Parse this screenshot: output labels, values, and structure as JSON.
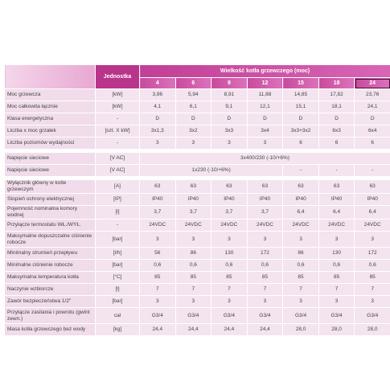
{
  "header": {
    "unit_label": "Jednostka",
    "group_label": "Wielkość kotła grzewczego (moc)",
    "columns": [
      "4",
      "6",
      "9",
      "12",
      "15",
      "18",
      "24"
    ]
  },
  "rows": [
    {
      "label": "Moc grzewcza",
      "unit": "[kW]",
      "values": [
        "3,96",
        "5,94",
        "8,91",
        "11,88",
        "14,85",
        "17,82",
        "23,76"
      ]
    },
    {
      "label": "Moc całkowita łącznie",
      "unit": "[kW]",
      "values": [
        "4,1",
        "6,1",
        "9,1",
        "12,1",
        "15,1",
        "18,1",
        "24,1"
      ]
    },
    {
      "label": "Klasa energetyczna",
      "unit": "-",
      "values": [
        "D",
        "D",
        "D",
        "D",
        "D",
        "D",
        "D"
      ]
    },
    {
      "label": "Liczba x moc grzałek",
      "unit": "[szt. X kW]",
      "values": [
        "3x1,3",
        "3x2",
        "3x3",
        "3x4",
        "3x3+3x2",
        "6x3",
        "6x4"
      ]
    },
    {
      "label": "Liczba poziomów wydajności",
      "unit": "-",
      "values": [
        "3",
        "3",
        "3",
        "3",
        "6",
        "6",
        "6"
      ]
    },
    {
      "label": "Napięcie sieciowe",
      "unit": "[V AC]",
      "values": [
        "3x400/230 (-10/+6%)"
      ]
    },
    {
      "label": "Napięcie sieciowe",
      "unit": "[V AC]",
      "values": [
        "1x230 (-10/+6%)",
        "-",
        "-",
        "-"
      ]
    },
    {
      "label": "Wyłącznik główny w kotle grzewczym",
      "unit": "[A]",
      "values": [
        "63",
        "63",
        "63",
        "63",
        "63",
        "63",
        "63"
      ]
    },
    {
      "label": "Stopień ochrony elektrycznej",
      "unit": "[IP]",
      "values": [
        "IP40",
        "IP40",
        "IP40",
        "IP40",
        "IP40",
        "IP40",
        "IP40"
      ]
    },
    {
      "label": "Pojemność nominalna komory wodnej",
      "unit": "[l]",
      "values": [
        "3,7",
        "3,7",
        "3,7",
        "3,7",
        "6,4",
        "6,4",
        "6,4"
      ]
    },
    {
      "label": "Przyłącze termostatu WŁ./WYŁ.",
      "unit": "-",
      "values": [
        "24VDC",
        "24VDC",
        "24VDC",
        "24VDC",
        "24VDC",
        "24VDC",
        "24VDC"
      ]
    },
    {
      "label": "Maksymalne dopuszczalne ciśnienie robocze",
      "unit": "[bar]",
      "values": [
        "3",
        "3",
        "3",
        "3",
        "3",
        "3",
        "3"
      ]
    },
    {
      "label": "Minimalny strumień przepływu",
      "unit": "[l/h]",
      "values": [
        "56",
        "86",
        "130",
        "172",
        "86",
        "130",
        "172"
      ]
    },
    {
      "label": "Minimalne ciśnienie robocze",
      "unit": "[bar]",
      "values": [
        "0,6",
        "0,6",
        "0,6",
        "0,6",
        "0,6",
        "0,6",
        "0,6"
      ]
    },
    {
      "label": "Maksymalna temperatura kotła",
      "unit": "[°C]",
      "values": [
        "85",
        "85",
        "85",
        "85",
        "85",
        "85",
        "85"
      ]
    },
    {
      "label": "Naczynie wzbiorcze",
      "unit": "[l]",
      "values": [
        "7",
        "7",
        "7",
        "7",
        "7",
        "7",
        "7"
      ]
    },
    {
      "label": "Zawór bezpieczeństwa 1/2\"",
      "unit": "[bar]",
      "values": [
        "3",
        "3",
        "3",
        "3",
        "3",
        "3",
        "3"
      ]
    },
    {
      "label": "Przyłącze zasilania i powrotu (gwint zewn.)",
      "unit": "cal",
      "values": [
        "G3/4",
        "G3/4",
        "G3/4",
        "G3/4",
        "G3/4",
        "G3/4",
        "G3/4"
      ]
    },
    {
      "label": "Masa kotła grzewczego bez wody",
      "unit": "[kg]",
      "values": [
        "24,4",
        "24,4",
        "24,4",
        "24,4",
        "28,0",
        "28,0",
        "28,0"
      ]
    }
  ]
}
